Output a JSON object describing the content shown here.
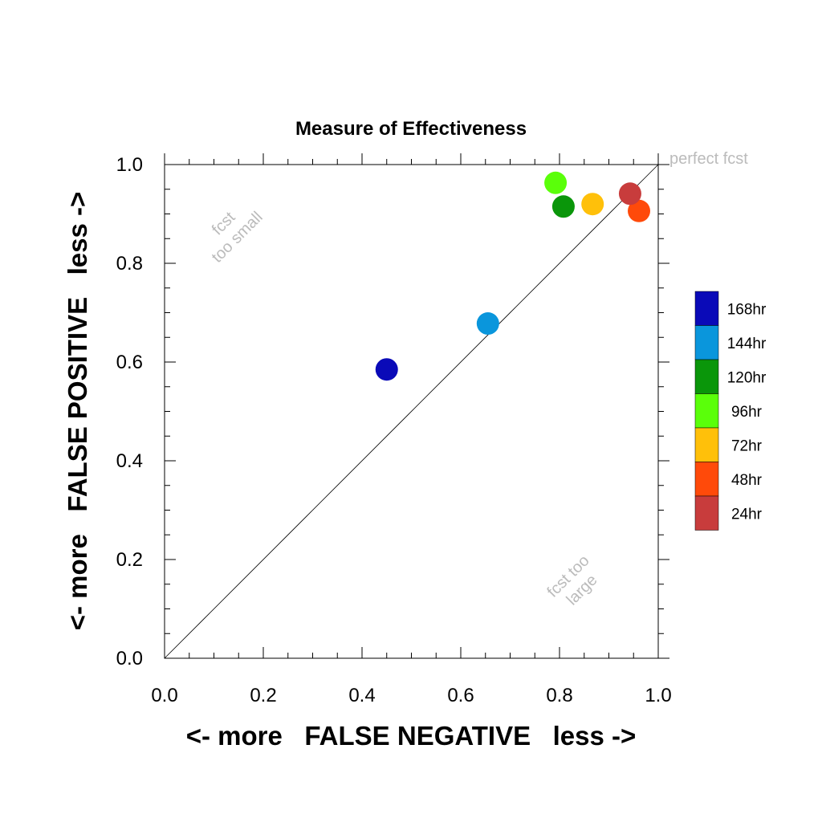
{
  "chart_data": {
    "type": "scatter",
    "title": "Measure of Effectiveness",
    "xlabel": "<- more   FALSE NEGATIVE   less ->",
    "ylabel": "<- more   FALSE POSITIVE   less ->",
    "xlim": [
      0.0,
      1.0
    ],
    "ylim": [
      0.0,
      1.0
    ],
    "x_ticks": [
      "0.0",
      "0.2",
      "0.4",
      "0.6",
      "0.8",
      "1.0"
    ],
    "y_ticks": [
      "0.0",
      "0.2",
      "0.4",
      "0.6",
      "0.8",
      "1.0"
    ],
    "grid": false,
    "reference_line": "diagonal y = x",
    "annotations": {
      "perfect": "perfect fcst",
      "small_line1": "fcst",
      "small_line2": "too small",
      "large_line1": "fcst too",
      "large_line2": "large"
    },
    "legend_position": "right",
    "series": [
      {
        "name": "168hr",
        "color": "#0a0ab8",
        "x": 0.45,
        "y": 0.585
      },
      {
        "name": "144hr",
        "color": "#0a96dc",
        "x": 0.655,
        "y": 0.678
      },
      {
        "name": "120hr",
        "color": "#0a960a",
        "x": 0.808,
        "y": 0.915
      },
      {
        "name": "96hr",
        "color": "#5aff0a",
        "x": 0.792,
        "y": 0.963
      },
      {
        "name": "72hr",
        "color": "#ffc00a",
        "x": 0.867,
        "y": 0.92
      },
      {
        "name": "48hr",
        "color": "#ff4a0a",
        "x": 0.961,
        "y": 0.906
      },
      {
        "name": "24hr",
        "color": "#c83c3c",
        "x": 0.943,
        "y": 0.941
      }
    ]
  }
}
